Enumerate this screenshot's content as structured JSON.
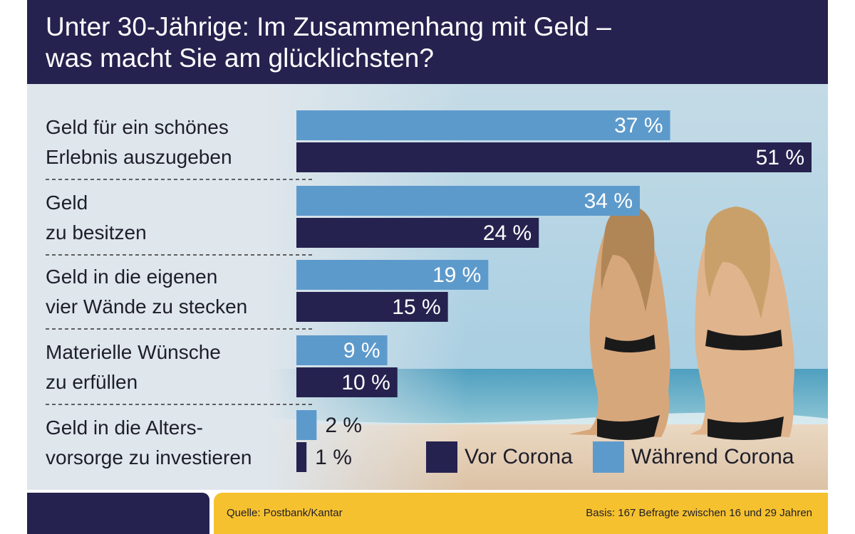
{
  "title": "Unter 30-Jährige: Im Zusammenhang mit Geld –\nwas macht Sie am glücklichsten?",
  "chart_data": {
    "type": "bar",
    "orientation": "horizontal",
    "title": "Unter 30-Jährige: Im Zusammenhang mit Geld – was macht Sie am glücklichsten?",
    "categories": [
      "Geld für ein schönes\nErlebnis auszugeben",
      "Geld\nzu besitzen",
      "Geld in die eigenen\nvier Wände zu stecken",
      "Materielle Wünsche\nzu erfüllen",
      "Geld in die Alters-\nvorsorge zu investieren"
    ],
    "series": [
      {
        "name": "Während Corona",
        "values": [
          37,
          34,
          19,
          9,
          2
        ],
        "labels": [
          "37 %",
          "34 %",
          "19 %",
          "9 %",
          "2 %"
        ],
        "color": "#5d9acc"
      },
      {
        "name": "Vor Corona",
        "values": [
          51,
          24,
          15,
          10,
          1
        ],
        "labels": [
          "51 %",
          "24 %",
          "15 %",
          "10 %",
          "1 %"
        ],
        "color": "#25224f"
      }
    ],
    "unit": "%",
    "xlim": [
      0,
      51
    ],
    "legend_position": "bottom-right",
    "legend_order": [
      "Vor Corona",
      "Während Corona"
    ],
    "grid": false
  },
  "footer": {
    "source": "Quelle: Postbank/Kantar",
    "basis": "Basis: 167 Befragte zwischen 16 und 29 Jahren"
  },
  "colors": {
    "header": "#25224f",
    "footer_accent": "#f6c12e",
    "label_text": "#1e1e2a"
  },
  "background_image": "beach-scene-two-women-in-bikinis"
}
